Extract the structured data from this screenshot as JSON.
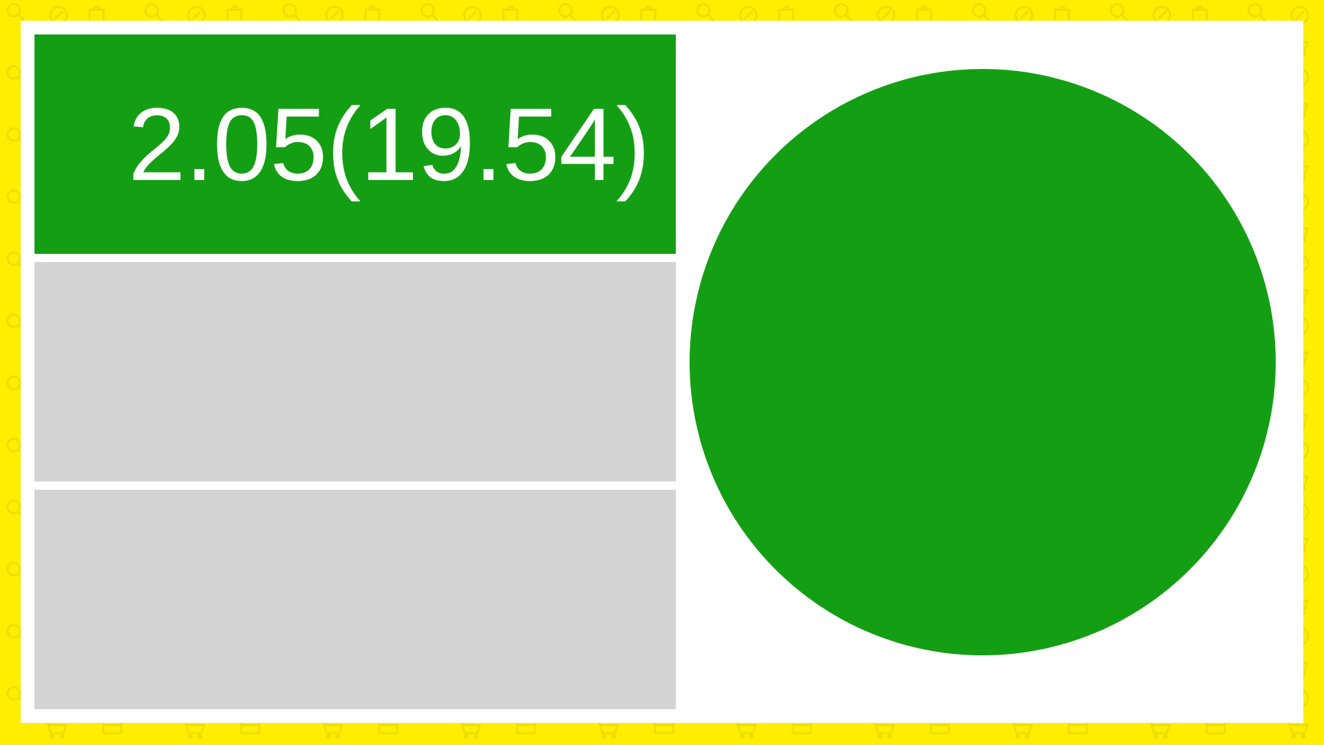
{
  "background": {
    "color": "#ffee00",
    "pattern_icons": [
      "magnifier-icon",
      "percent-tag-icon",
      "shopping-bag-icon",
      "cart-icon",
      "credit-card-icon"
    ]
  },
  "tiles": [
    {
      "value": "2.05(19.54)",
      "color": "#149e14",
      "state": "active"
    },
    {
      "value": "",
      "color": "#d3d3d3",
      "state": "inactive"
    },
    {
      "value": "",
      "color": "#d3d3d3",
      "state": "inactive"
    }
  ],
  "indicator": {
    "color": "#149e14",
    "shape": "circle"
  }
}
